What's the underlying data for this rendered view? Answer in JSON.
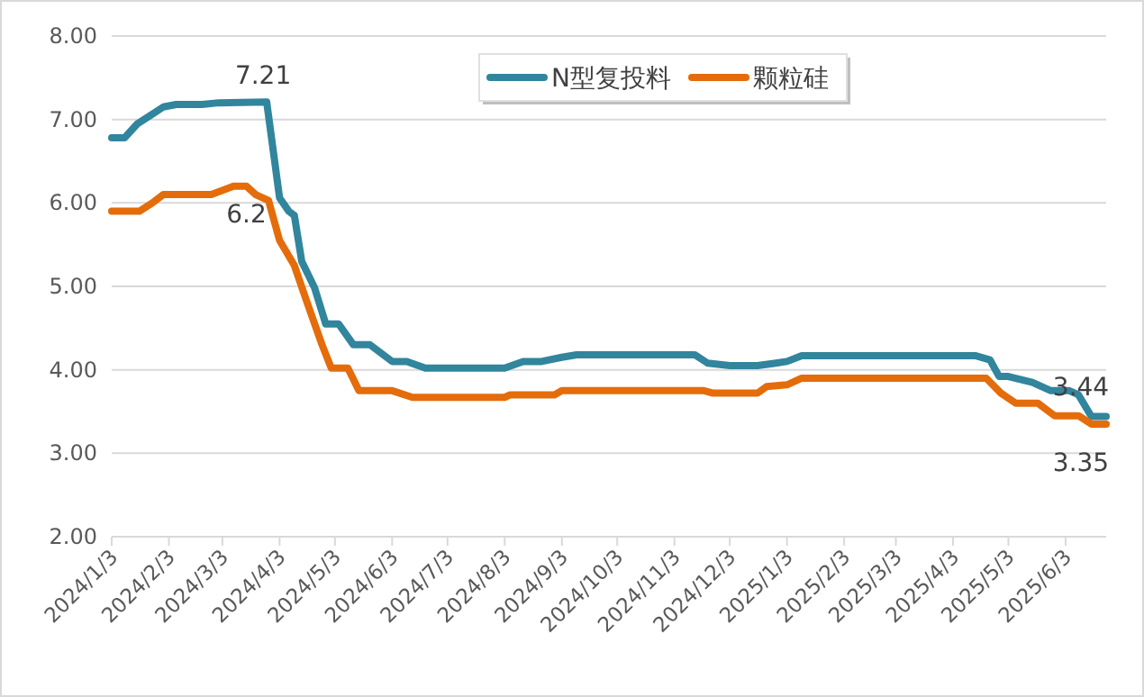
{
  "chart_data": {
    "type": "line",
    "x": [
      "2024-01-03",
      "2024-01-10",
      "2024-01-17",
      "2024-01-24",
      "2024-01-31",
      "2024-02-07",
      "2024-02-21",
      "2024-03-01",
      "2024-03-27",
      "2024-04-03",
      "2024-04-08",
      "2024-04-11",
      "2024-04-15",
      "2024-04-22",
      "2024-04-28",
      "2024-05-05",
      "2024-05-13",
      "2024-05-22",
      "2024-06-03",
      "2024-06-11",
      "2024-06-21",
      "2024-08-03",
      "2024-08-13",
      "2024-08-23",
      "2024-09-03",
      "2024-09-11",
      "2024-11-14",
      "2024-11-21",
      "2024-12-03",
      "2024-12-18",
      "2024-12-28",
      "2025-01-03",
      "2025-01-11",
      "2025-04-15",
      "2025-04-23",
      "2025-04-28",
      "2025-05-03",
      "2025-05-16",
      "2025-05-26",
      "2025-06-05",
      "2025-06-10",
      "2025-06-17",
      "2025-06-25"
    ],
    "series": [
      {
        "name": "N型复投料",
        "color": "#31859c",
        "values": [
          6.78,
          6.78,
          6.95,
          7.05,
          7.15,
          7.18,
          7.18,
          7.2,
          7.21,
          6.06,
          5.9,
          5.85,
          5.3,
          4.98,
          4.55,
          4.55,
          4.3,
          4.3,
          4.1,
          4.1,
          4.02,
          4.02,
          4.1,
          4.1,
          4.15,
          4.18,
          4.18,
          4.08,
          4.05,
          4.05,
          4.08,
          4.1,
          4.17,
          4.17,
          4.12,
          3.92,
          3.92,
          3.85,
          3.75,
          3.75,
          3.7,
          3.44,
          3.44
        ]
      },
      {
        "name": "颗粒硅",
        "color": "#e46c0a",
        "x": [
          "2024-01-03",
          "2024-01-18",
          "2024-01-25",
          "2024-01-31",
          "2024-02-26",
          "2024-03-09",
          "2024-03-16",
          "2024-03-21",
          "2024-03-28",
          "2024-04-03",
          "2024-04-11",
          "2024-04-18",
          "2024-04-26",
          "2024-05-01",
          "2024-05-10",
          "2024-05-16",
          "2024-06-03",
          "2024-06-14",
          "2024-08-03",
          "2024-08-06",
          "2024-08-30",
          "2024-09-03",
          "2024-11-19",
          "2024-11-24",
          "2024-12-18",
          "2024-12-23",
          "2025-01-03",
          "2025-01-11",
          "2025-04-21",
          "2025-04-29",
          "2025-05-07",
          "2025-05-19",
          "2025-05-28",
          "2025-06-10",
          "2025-06-17",
          "2025-06-25"
        ],
        "values": [
          5.9,
          5.9,
          6.0,
          6.1,
          6.1,
          6.2,
          6.2,
          6.1,
          6.03,
          5.55,
          5.25,
          4.8,
          4.3,
          4.02,
          4.02,
          3.75,
          3.75,
          3.67,
          3.67,
          3.7,
          3.7,
          3.75,
          3.75,
          3.72,
          3.72,
          3.8,
          3.82,
          3.9,
          3.9,
          3.72,
          3.6,
          3.6,
          3.45,
          3.45,
          3.35,
          3.35
        ]
      }
    ],
    "xlim": [
      "2024-01-03",
      "2025-06-25"
    ],
    "xticks": [
      {
        "value": "2024-01-03",
        "label": "2024/1/3"
      },
      {
        "value": "2024-02-03",
        "label": "2024/2/3"
      },
      {
        "value": "2024-03-03",
        "label": "2024/3/3"
      },
      {
        "value": "2024-04-03",
        "label": "2024/4/3"
      },
      {
        "value": "2024-05-03",
        "label": "2024/5/3"
      },
      {
        "value": "2024-06-03",
        "label": "2024/6/3"
      },
      {
        "value": "2024-07-03",
        "label": "2024/7/3"
      },
      {
        "value": "2024-08-03",
        "label": "2024/8/3"
      },
      {
        "value": "2024-09-03",
        "label": "2024/9/3"
      },
      {
        "value": "2024-10-03",
        "label": "2024/10/3"
      },
      {
        "value": "2024-11-03",
        "label": "2024/11/3"
      },
      {
        "value": "2024-12-03",
        "label": "2024/12/3"
      },
      {
        "value": "2025-01-03",
        "label": "2025/1/3"
      },
      {
        "value": "2025-02-03",
        "label": "2025/2/3"
      },
      {
        "value": "2025-03-03",
        "label": "2025/3/3"
      },
      {
        "value": "2025-04-03",
        "label": "2025/4/3"
      },
      {
        "value": "2025-05-03",
        "label": "2025/5/3"
      },
      {
        "value": "2025-06-03",
        "label": "2025/6/3"
      }
    ],
    "ylim": [
      2,
      8
    ],
    "yticks": [
      {
        "value": 2,
        "label": "2.00"
      },
      {
        "value": 3,
        "label": "3.00"
      },
      {
        "value": 4,
        "label": "4.00"
      },
      {
        "value": 5,
        "label": "5.00"
      },
      {
        "value": 6,
        "label": "6.00"
      },
      {
        "value": 7,
        "label": "7.00"
      },
      {
        "value": 8,
        "label": "8.00"
      }
    ],
    "grid": "y",
    "legend": "top",
    "marker": "none",
    "line_style": "solid",
    "annotations": [
      {
        "text": "7.21",
        "x": "2024-03-27",
        "y": 7.21
      },
      {
        "text": "6.2",
        "x": "2024-03-16",
        "y": 6.2
      },
      {
        "text": "3.44",
        "x": "2025-06-25",
        "y": 3.44
      },
      {
        "text": "3.35",
        "x": "2025-06-25",
        "y": 3.35
      }
    ]
  }
}
